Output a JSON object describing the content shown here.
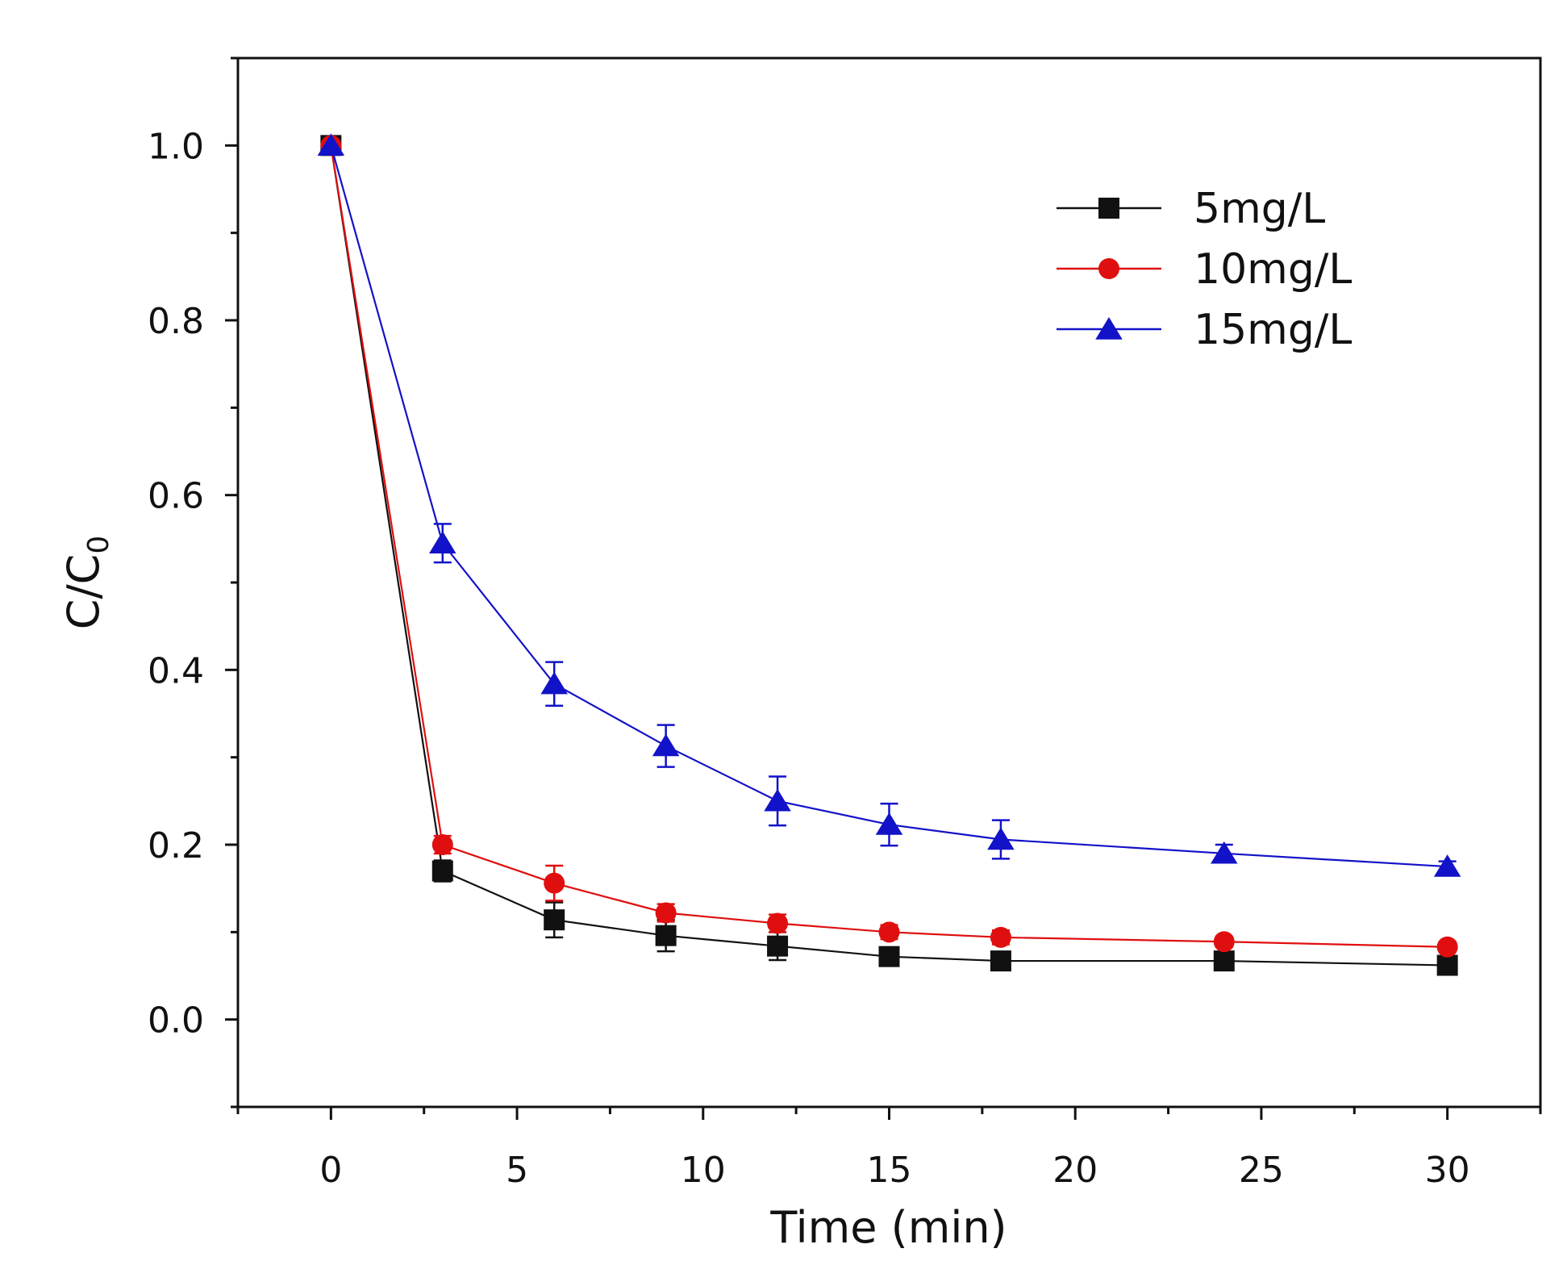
{
  "chart_data": {
    "type": "line",
    "title": "",
    "xlabel": "Time (min)",
    "ylabel": "C/C",
    "ylabel_subscript": "0",
    "xlim": [
      -2.5,
      32.5
    ],
    "ylim": [
      -0.1,
      1.1
    ],
    "x_ticks": [
      0,
      5,
      10,
      15,
      20,
      25,
      30
    ],
    "x_tick_labels": [
      "0",
      "5",
      "10",
      "15",
      "20",
      "25",
      "30"
    ],
    "y_ticks": [
      0.0,
      0.2,
      0.4,
      0.6,
      0.8,
      1.0
    ],
    "y_tick_labels": [
      "0.0",
      "0.2",
      "0.4",
      "0.6",
      "0.8",
      "1.0"
    ],
    "grid": false,
    "legend_position": "top-right",
    "series": [
      {
        "name": "5mg/L",
        "color": "#111111",
        "marker": "square",
        "x": [
          0,
          3,
          6,
          9,
          12,
          15,
          18,
          24,
          30
        ],
        "y": [
          1.0,
          0.17,
          0.114,
          0.096,
          0.084,
          0.072,
          0.067,
          0.067,
          0.062
        ],
        "err": [
          0.0,
          0.012,
          0.02,
          0.018,
          0.016,
          0.008,
          0.006,
          0.006,
          0.006
        ]
      },
      {
        "name": "10mg/L",
        "color": "#e00f0f",
        "marker": "circle",
        "x": [
          0,
          3,
          6,
          9,
          12,
          15,
          18,
          24,
          30
        ],
        "y": [
          1.0,
          0.2,
          0.156,
          0.122,
          0.11,
          0.1,
          0.094,
          0.089,
          0.083
        ],
        "err": [
          0.0,
          0.01,
          0.02,
          0.01,
          0.01,
          0.008,
          0.008,
          0.006,
          0.006
        ]
      },
      {
        "name": "15mg/L",
        "color": "#1212c8",
        "marker": "triangle",
        "x": [
          0,
          3,
          6,
          9,
          12,
          15,
          18,
          24,
          30
        ],
        "y": [
          1.0,
          0.545,
          0.384,
          0.313,
          0.25,
          0.223,
          0.206,
          0.19,
          0.175
        ],
        "err": [
          0.0,
          0.022,
          0.025,
          0.024,
          0.028,
          0.024,
          0.022,
          0.01,
          0.006
        ]
      }
    ]
  }
}
